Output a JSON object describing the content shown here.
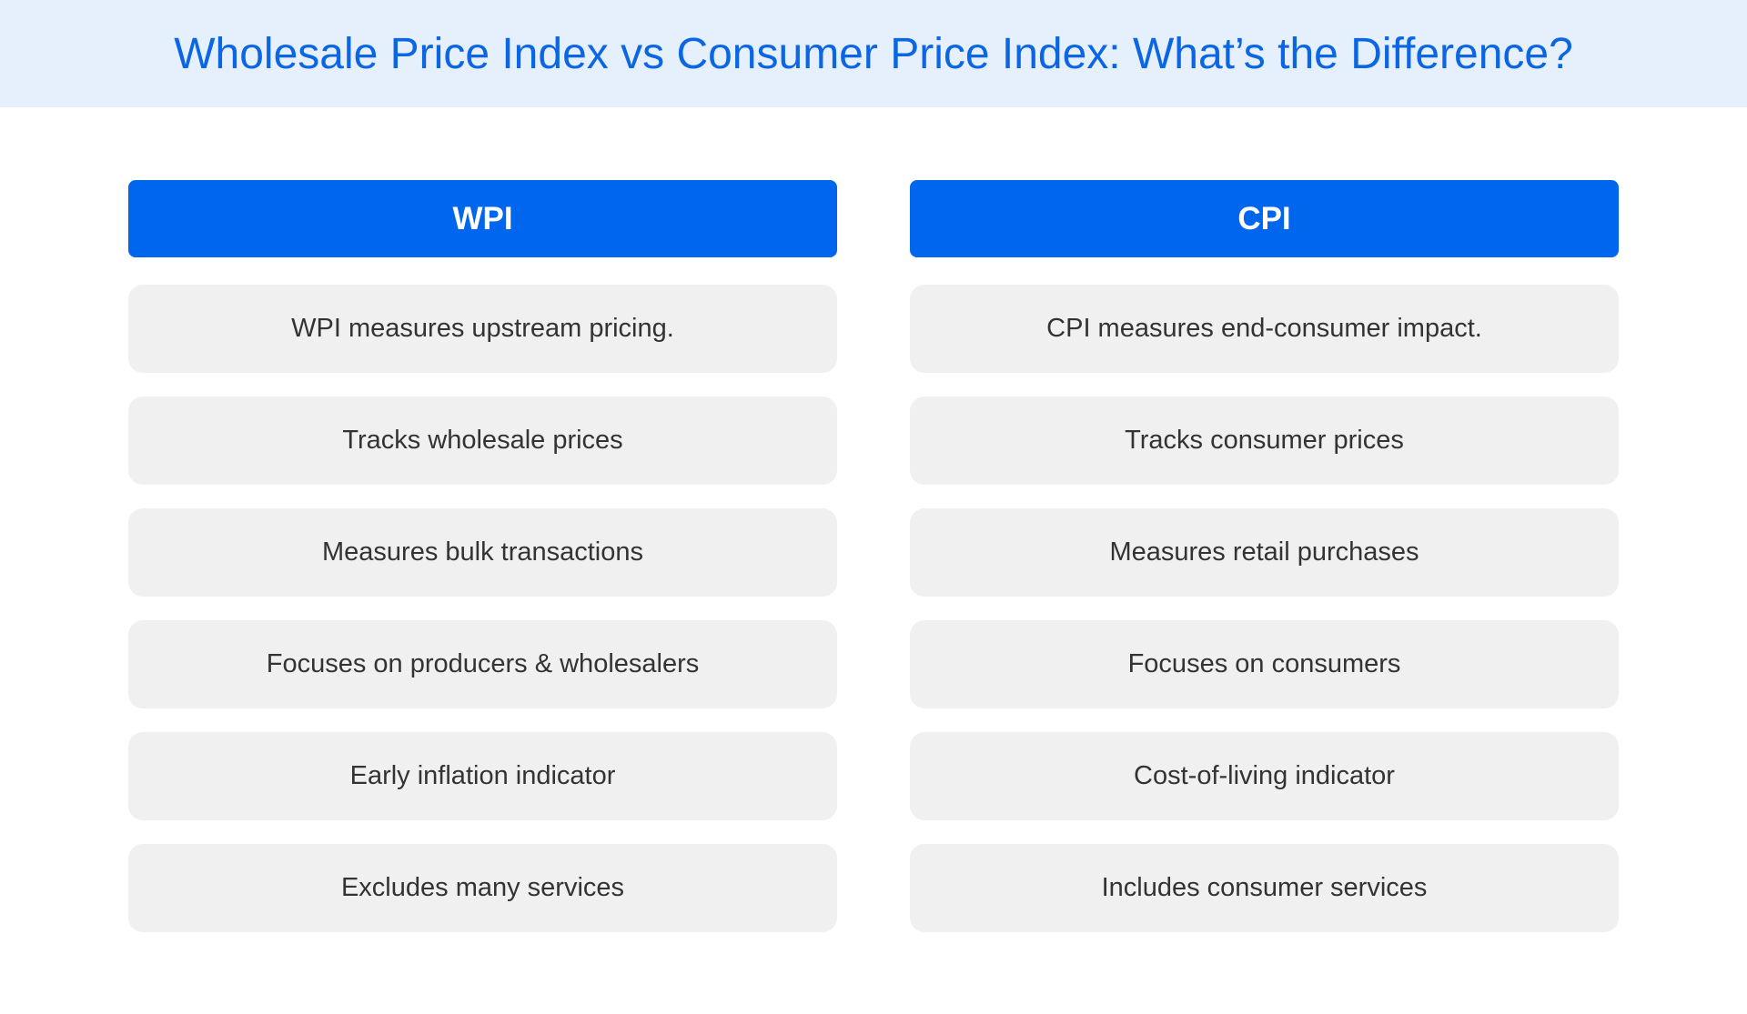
{
  "header": {
    "title": "Wholesale Price Index vs Consumer Price Index: What’s the Difference?"
  },
  "columns": [
    {
      "heading": "WPI",
      "items": [
        "WPI measures upstream pricing.",
        "Tracks wholesale prices",
        "Measures bulk transactions",
        "Focuses on producers & wholesalers",
        "Early inflation indicator",
        "Excludes many services"
      ]
    },
    {
      "heading": "CPI",
      "items": [
        "CPI measures end-consumer impact.",
        "Tracks consumer prices",
        "Measures retail purchases",
        "Focuses on consumers",
        "Cost-of-living indicator",
        "Includes consumer services"
      ]
    }
  ]
}
